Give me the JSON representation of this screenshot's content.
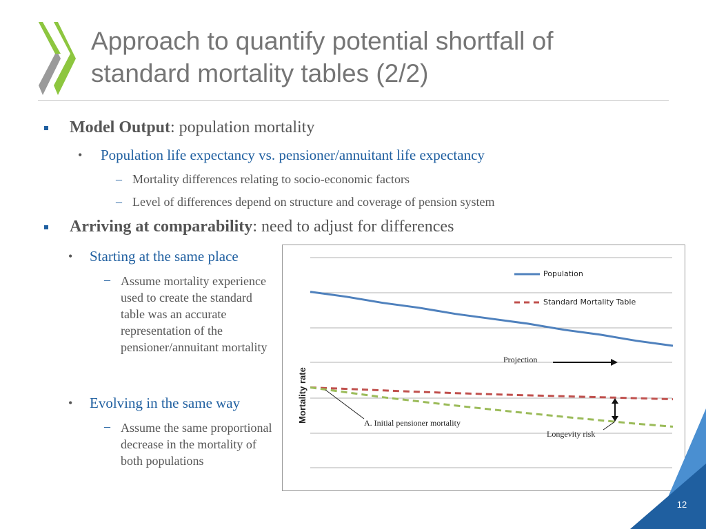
{
  "slide": {
    "title_line1": "Approach to quantify potential shortfall of",
    "title_line2": "standard mortality tables (2/2)",
    "page_number": "12"
  },
  "bullets": {
    "b1_bold": "Model Output",
    "b1_rest": ": population mortality",
    "b1_sub1": "Population life expectancy vs. pensioner/annuitant life expectancy",
    "b1_sub1_a": "Mortality differences relating to socio-economic factors",
    "b1_sub1_b": "Level of differences depend on structure and coverage of pension system",
    "b2_bold": "Arriving at comparability",
    "b2_rest": ": need to adjust for differences",
    "b2_sub1": "Starting at the same place",
    "b2_sub1_a": "Assume mortality experience used to create the standard table was an accurate representation of the pensioner/annuitant mortality",
    "b2_sub2": "Evolving in the same way",
    "b2_sub2_a": "Assume the same proportional decrease in the mortality of both populations"
  },
  "colors": {
    "accent_blue": "#1f5fa0",
    "logo_green": "#8dc63f",
    "population_line": "#4f81bd",
    "standard_table_line": "#c0504d",
    "pensioner_line": "#9bbb59"
  },
  "chart_data": {
    "type": "line",
    "ylabel": "Mortality rate",
    "xlabel": "",
    "grid": true,
    "legend_position": "top-right",
    "series": [
      {
        "name": "Population",
        "style": "solid",
        "values": [
          0.81,
          0.79,
          0.765,
          0.745,
          0.72,
          0.7,
          0.68,
          0.655,
          0.635,
          0.61,
          0.59
        ]
      },
      {
        "name": "Standard Mortality Table",
        "style": "dashed",
        "values": [
          0.42,
          0.414,
          0.408,
          0.402,
          0.397,
          0.392,
          0.388,
          0.384,
          0.38,
          0.376,
          0.372
        ]
      },
      {
        "name": "",
        "style": "dashed",
        "values": [
          0.42,
          0.4,
          0.38,
          0.363,
          0.346,
          0.33,
          0.315,
          0.3,
          0.286,
          0.272,
          0.26
        ]
      }
    ],
    "annotations": {
      "projection": "Projection",
      "initial": "A. Initial pensioner mortality",
      "longevity": "Longevity risk"
    }
  }
}
